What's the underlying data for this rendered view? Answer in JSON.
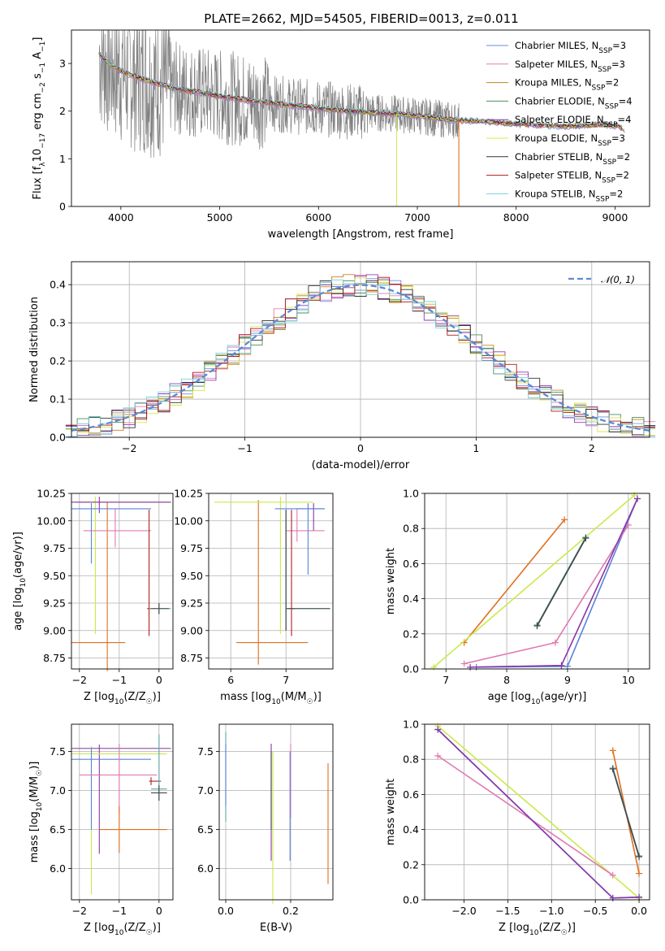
{
  "figure": {
    "title": "PLATE=2662, MJD=54505, FIBERID=0013, z=0.011"
  },
  "series_names": [
    "Chabrier MILES, N<sub>SSP</sub>=3",
    "Salpeter MILES, N<sub>SSP</sub>=3",
    "Kroupa MILES, N<sub>SSP</sub>=2",
    "Chabrier ELODIE, N<sub>SSP</sub>=4",
    "Salpeter ELODIE, N<sub>SSP</sub>=4",
    "Kroupa ELODIE, N<sub>SSP</sub>=3",
    "Chabrier STELIB, N<sub>SSP</sub>=2",
    "Salpeter STELIB, N<sub>SSP</sub>=2",
    "Kroupa STELIB, N<sub>SSP</sub>=2"
  ],
  "legend_labels": [
    [
      "Chabrier MILES, N",
      "SSP",
      "=3"
    ],
    [
      "Salpeter MILES, N",
      "SSP",
      "=3"
    ],
    [
      "Kroupa MILES, N",
      "SSP",
      "=2"
    ],
    [
      "Chabrier ELODIE, N",
      "SSP",
      "=4"
    ],
    [
      "Salpeter ELODIE, N",
      "SSP",
      "=4"
    ],
    [
      "Kroupa ELODIE, N",
      "SSP",
      "=3"
    ],
    [
      "Chabrier STELIB, N",
      "SSP",
      "=2"
    ],
    [
      "Salpeter STELIB, N",
      "SSP",
      "=2"
    ],
    [
      "Kroupa STELIB, N",
      "SSP",
      "=2"
    ]
  ],
  "colors": {
    "series": [
      "#6a8fd8",
      "#e37ab8",
      "#c8801e",
      "#4f8f5a",
      "#8a3fb8",
      "#d8e84a",
      "#333333",
      "#b01818",
      "#7ad0d8"
    ],
    "data": "#808080",
    "gaussian": "#5b8ad6",
    "c_blue": "#5b82d8",
    "c_orange": "#e06f1f",
    "c_pink": "#e07ab0",
    "c_lime": "#c8ea4a",
    "c_purple": "#8a36a8",
    "c_teal": "#5aa8a8",
    "c_red": "#b02020",
    "c_darkgray": "#444444"
  },
  "chart_data": [
    {
      "id": "spectrum",
      "type": "line",
      "xlabel": "wavelength [Angstrom, rest frame]",
      "ylabel": [
        "Flux [f",
        "λ",
        "10",
        "−17",
        " erg cm",
        "−2",
        " s",
        "−1",
        " A",
        "−1",
        "]"
      ],
      "xlim": [
        3500,
        9350
      ],
      "ylim": [
        0,
        3.7
      ],
      "xticks": [
        4000,
        5000,
        6000,
        7000,
        8000,
        9000
      ],
      "yticks": [
        0,
        1,
        2,
        3
      ],
      "model_curve": {
        "x": [
          3780,
          3850,
          3950,
          4050,
          4150,
          4300,
          4500,
          4700,
          4900,
          5100,
          5300,
          5500,
          5700,
          5900,
          6100,
          6300,
          6500,
          6700,
          6900,
          7100,
          7300,
          7500,
          7700,
          7900,
          8100,
          8300,
          8500,
          8700,
          8900,
          9050,
          9100
        ],
        "y": [
          3.2,
          3.05,
          2.9,
          2.8,
          2.72,
          2.62,
          2.5,
          2.42,
          2.35,
          2.28,
          2.22,
          2.18,
          2.12,
          2.08,
          2.04,
          2.0,
          1.98,
          1.95,
          1.92,
          1.88,
          1.82,
          1.8,
          1.78,
          1.75,
          1.72,
          1.7,
          1.68,
          1.7,
          1.72,
          1.68,
          1.55
        ]
      },
      "noisy_range": [
        3780,
        7420
      ],
      "legend_position": "top-right"
    },
    {
      "id": "residuals",
      "type": "histogram",
      "xlabel": "(data-model)/error",
      "ylabel": "Normed distribution",
      "xlim": [
        -2.5,
        2.5
      ],
      "ylim": [
        0,
        0.46
      ],
      "xticks": [
        -2,
        -1,
        0,
        1,
        2
      ],
      "yticks": [
        0.0,
        0.1,
        0.2,
        0.3,
        0.4
      ],
      "bin_width": 0.1,
      "gaussian": {
        "label": "𝒩(0, 1)",
        "mu": 0,
        "sigma": 1
      },
      "legend_position": "top-right"
    },
    {
      "id": "age_vs_Z",
      "type": "errorbar",
      "xlabel": [
        "Z [log",
        "10",
        "(Z/Z",
        "☉",
        ")]"
      ],
      "ylabel": [
        "age  [log",
        "10",
        "(age/yr)]"
      ],
      "xlim": [
        -2.2,
        0.35
      ],
      "ylim": [
        8.65,
        10.25
      ],
      "xticks": [
        -2,
        -1,
        0
      ],
      "yticks": [
        8.75,
        9.0,
        9.25,
        9.5,
        9.75,
        10.0,
        10.25
      ],
      "points": [
        {
          "c": "c_orange",
          "x": -1.3,
          "xerr": [
            0.9,
            0.45
          ],
          "y": 8.89,
          "yerr": [
            0.26,
            1.28
          ]
        },
        {
          "c": "c_lime",
          "x": -1.6,
          "xerr": [
            0.5,
            1.9
          ],
          "y": 10.17,
          "yerr": [
            1.2,
            0.05
          ]
        },
        {
          "c": "c_purple",
          "x": -1.5,
          "xerr": [
            0.7,
            1.8
          ],
          "y": 10.17,
          "yerr": [
            0.1,
            0.05
          ]
        },
        {
          "c": "c_pink",
          "x": -1.1,
          "xerr": [
            0.8,
            0.9
          ],
          "y": 9.91,
          "yerr": [
            0.15,
            0.2
          ]
        },
        {
          "c": "c_blue",
          "x": -1.7,
          "xerr": [
            0.5,
            1.5
          ],
          "y": 10.11,
          "yerr": [
            0.5,
            0.05
          ]
        },
        {
          "c": "c_red",
          "x": -0.25,
          "xerr": [
            0.05,
            0.05
          ],
          "y": 9.2,
          "yerr": [
            0.25,
            0.9
          ]
        },
        {
          "c": "c_teal",
          "x": 0.0,
          "xerr": [
            0.25,
            0.3
          ],
          "y": 9.2,
          "yerr": [
            0.05,
            0.05
          ]
        },
        {
          "c": "c_darkgray",
          "x": 0.0,
          "xerr": [
            0.2,
            0.25
          ],
          "y": 9.2,
          "yerr": [
            0.05,
            0.05
          ]
        }
      ]
    },
    {
      "id": "age_vs_mass",
      "type": "errorbar",
      "xlabel": [
        "mass [log",
        "10",
        "(M/M",
        "☉",
        ")]"
      ],
      "ylabel": "",
      "xlim": [
        5.6,
        7.85
      ],
      "ylim": [
        8.65,
        10.25
      ],
      "xticks": [
        6,
        7
      ],
      "yticks": [
        8.75,
        9.0,
        9.25,
        9.5,
        9.75,
        10.0,
        10.25
      ],
      "points": [
        {
          "c": "c_orange",
          "x": 6.5,
          "xerr": [
            0.4,
            0.9
          ],
          "y": 8.89,
          "yerr": [
            0.2,
            1.3
          ]
        },
        {
          "c": "c_lime",
          "x": 6.9,
          "xerr": [
            1.2,
            0.6
          ],
          "y": 10.17,
          "yerr": [
            1.2,
            0.05
          ]
        },
        {
          "c": "c_purple",
          "x": 7.5,
          "xerr": [
            0.3,
            0.2
          ],
          "y": 10.11,
          "yerr": [
            0.2,
            0.05
          ]
        },
        {
          "c": "c_pink",
          "x": 7.2,
          "xerr": [
            0.2,
            0.5
          ],
          "y": 9.91,
          "yerr": [
            0.1,
            0.2
          ]
        },
        {
          "c": "c_blue",
          "x": 7.4,
          "xerr": [
            0.6,
            0.3
          ],
          "y": 10.11,
          "yerr": [
            0.6,
            0.05
          ]
        },
        {
          "c": "c_red",
          "x": 7.1,
          "xerr": [
            0.05,
            0.05
          ],
          "y": 9.2,
          "yerr": [
            0.25,
            0.9
          ]
        },
        {
          "c": "c_teal",
          "x": 7.0,
          "xerr": [
            0.0,
            0.8
          ],
          "y": 9.2,
          "yerr": [
            0.2,
            0.9
          ]
        },
        {
          "c": "c_darkgray",
          "x": 7.0,
          "xerr": [
            0.0,
            0.8
          ],
          "y": 9.2,
          "yerr": [
            0.2,
            0.9
          ]
        }
      ]
    },
    {
      "id": "mw_vs_age",
      "type": "line",
      "xlabel": [
        "age  [log",
        "10",
        "(age/yr)]"
      ],
      "ylabel": "mass weight",
      "xlim": [
        6.65,
        10.35
      ],
      "ylim": [
        0,
        1.0
      ],
      "xticks": [
        7,
        8,
        9,
        10
      ],
      "yticks": [
        0.0,
        0.2,
        0.4,
        0.6,
        0.8,
        1.0
      ],
      "series": [
        {
          "c": "c_orange",
          "x": [
            7.3,
            8.95
          ],
          "y": [
            0.15,
            0.85
          ]
        },
        {
          "c": "c_blue",
          "x": [
            7.5,
            9.0,
            10.15
          ],
          "y": [
            0.01,
            0.015,
            0.97
          ]
        },
        {
          "c": "c_pink",
          "x": [
            7.3,
            8.8,
            10.0
          ],
          "y": [
            0.03,
            0.15,
            0.82
          ]
        },
        {
          "c": "c_lime",
          "x": [
            6.8,
            10.1
          ],
          "y": [
            0.01,
            0.99
          ]
        },
        {
          "c": "c_purple",
          "x": [
            7.4,
            8.9,
            10.15
          ],
          "y": [
            0.01,
            0.02,
            0.97
          ]
        },
        {
          "c": "c_teal",
          "x": [
            8.5,
            9.3
          ],
          "y": [
            0.25,
            0.75
          ]
        },
        {
          "c": "c_darkgray",
          "x": [
            8.5,
            9.3
          ],
          "y": [
            0.245,
            0.745
          ]
        }
      ]
    },
    {
      "id": "mass_vs_Z",
      "type": "errorbar",
      "xlabel": [
        "Z [log",
        "10",
        "(Z/Z",
        "☉",
        ")]"
      ],
      "ylabel": [
        "mass [log",
        "10",
        "(M/M",
        "☉",
        ")]"
      ],
      "xlim": [
        -2.2,
        0.35
      ],
      "ylim": [
        5.6,
        7.85
      ],
      "xticks": [
        -2,
        -1,
        0
      ],
      "yticks": [
        6.0,
        6.5,
        7.0,
        7.5
      ],
      "points": [
        {
          "c": "c_purple",
          "x": -1.5,
          "xerr": [
            0.7,
            1.8
          ],
          "y": 7.54,
          "yerr": [
            1.35,
            0.05
          ]
        },
        {
          "c": "c_lime",
          "x": -1.7,
          "xerr": [
            0.5,
            1.9
          ],
          "y": 7.47,
          "yerr": [
            1.8,
            0.1
          ]
        },
        {
          "c": "c_blue",
          "x": -1.7,
          "xerr": [
            0.5,
            1.5
          ],
          "y": 7.4,
          "yerr": [
            0.9,
            0.15
          ]
        },
        {
          "c": "c_pink",
          "x": -1.0,
          "xerr": [
            1.0,
            0.95
          ],
          "y": 7.2,
          "yerr": [
            0.5,
            0.4
          ]
        },
        {
          "c": "c_orange",
          "x": -1.0,
          "xerr": [
            0.5,
            1.2
          ],
          "y": 6.5,
          "yerr": [
            0.3,
            0.3
          ]
        },
        {
          "c": "c_red",
          "x": -0.2,
          "xerr": [
            0.05,
            0.25
          ],
          "y": 7.12,
          "yerr": [
            0.05,
            0.05
          ]
        },
        {
          "c": "c_teal",
          "x": 0.0,
          "xerr": [
            0.2,
            0.2
          ],
          "y": 7.02,
          "yerr": [
            0.15,
            0.7
          ]
        },
        {
          "c": "c_darkgray",
          "x": 0.0,
          "xerr": [
            0.2,
            0.2
          ],
          "y": 6.97,
          "yerr": [
            0.1,
            0.1
          ]
        }
      ]
    },
    {
      "id": "mass_vs_EBV",
      "type": "errorbar",
      "xlabel": "E(B-V)",
      "ylabel": "",
      "xlim": [
        -0.02,
        0.33
      ],
      "ylim": [
        5.6,
        7.85
      ],
      "xticks": [
        0.0,
        0.2
      ],
      "yticks": [
        6.0,
        6.5,
        7.0,
        7.5
      ],
      "points": [
        {
          "c": "c_teal",
          "x": 0.0,
          "yerr": [
            0.9,
            0.25
          ],
          "y": 7.5
        },
        {
          "c": "c_blue",
          "x": 0.0,
          "yerr": [
            0.6,
            0.2
          ],
          "y": 7.4
        },
        {
          "c": "c_purple",
          "x": 0.14,
          "yerr": [
            1.4,
            0.1
          ],
          "y": 7.5
        },
        {
          "c": "c_lime",
          "x": 0.145,
          "yerr": [
            1.9,
            0.05
          ],
          "y": 7.45
        },
        {
          "c": "c_darkgray",
          "x": 0.14,
          "yerr": [
            0.9,
            0.1
          ],
          "y": 7.4
        },
        {
          "c": "c_pink",
          "x": 0.2,
          "yerr": [
            0.5,
            0.45
          ],
          "y": 7.15
        },
        {
          "c": "c_blue",
          "x": 0.198,
          "yerr": [
            0.9,
            0.5
          ],
          "y": 7.0
        },
        {
          "c": "c_orange",
          "x": 0.315,
          "yerr": [
            1.0,
            0.55
          ],
          "y": 6.8
        }
      ]
    },
    {
      "id": "mw_vs_Z",
      "type": "line",
      "xlabel": [
        "Z [log",
        "10",
        "(Z/Z",
        "☉",
        ")]"
      ],
      "ylabel": "mass weight",
      "xlim": [
        -2.45,
        0.12
      ],
      "ylim": [
        0,
        1.0
      ],
      "xticks": [
        -2.0,
        -1.5,
        -1.0,
        -0.5,
        0.0
      ],
      "yticks": [
        0.0,
        0.2,
        0.4,
        0.6,
        0.8,
        1.0
      ],
      "series": [
        {
          "c": "c_lime",
          "x": [
            -2.3,
            0.0
          ],
          "y": [
            0.99,
            0.01
          ]
        },
        {
          "c": "c_pink",
          "x": [
            -2.3,
            -0.3
          ],
          "y": [
            0.82,
            0.14
          ]
        },
        {
          "c": "c_blue",
          "x": [
            -2.3,
            -0.3,
            0.0
          ],
          "y": [
            0.97,
            0.01,
            0.015
          ]
        },
        {
          "c": "c_purple",
          "x": [
            -2.3,
            -0.3,
            0.0
          ],
          "y": [
            0.97,
            0.01,
            0.015
          ]
        },
        {
          "c": "c_orange",
          "x": [
            -0.3,
            0.0
          ],
          "y": [
            0.85,
            0.15
          ]
        },
        {
          "c": "c_teal",
          "x": [
            -0.3,
            0.0
          ],
          "y": [
            0.75,
            0.25
          ]
        },
        {
          "c": "c_darkgray",
          "x": [
            -0.3,
            0.0
          ],
          "y": [
            0.745,
            0.245
          ]
        }
      ]
    }
  ]
}
